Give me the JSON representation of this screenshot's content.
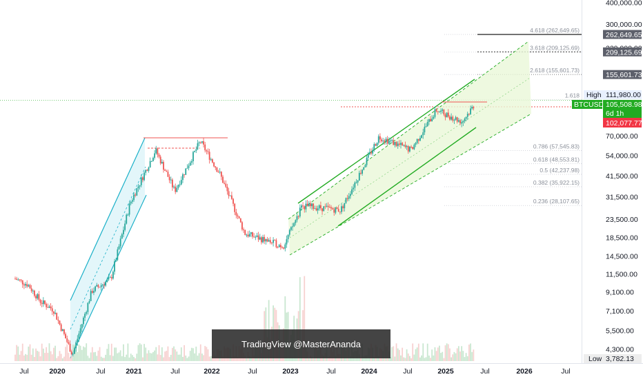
{
  "chart_data": {
    "type": "candlestick",
    "symbol": "BTCUSDT",
    "scale": "log",
    "x_ticks": [
      "Jul",
      "2020",
      "Jul",
      "2021",
      "Jul",
      "2022",
      "Jul",
      "2023",
      "Jul",
      "2024",
      "Jul",
      "2025",
      "Jul",
      "2026",
      "Jul"
    ],
    "y_ticks": [
      "400,000.00",
      "300,000.00",
      "220,000.00",
      "70,000.00",
      "54,000.00",
      "41,500.00",
      "31,500.00",
      "23,500.00",
      "18,500.00",
      "14,500.00",
      "11,500.00",
      "9,100.00",
      "7,100.00",
      "5,500.00",
      "4,300.00"
    ],
    "y_tick_values": [
      400000,
      300000,
      220000,
      70000,
      54000,
      41500,
      31500,
      23500,
      18500,
      14500,
      11500,
      9100,
      7100,
      5500,
      4300
    ],
    "price_labels": [
      {
        "text": "262,649.65",
        "value": 262649.65,
        "color": "#5d606b"
      },
      {
        "text": "209,125.69",
        "value": 209125.69,
        "color": "#5d606b"
      },
      {
        "text": "155,601.73",
        "value": 155601.73,
        "color": "#5d606b"
      },
      {
        "text": "111,980.00",
        "value": 111980,
        "color": "#e8f0fe",
        "prefix": "High"
      },
      {
        "text": "105,508.98",
        "value": 105508.98,
        "color": "#22ab22",
        "prefix": "BTCUSDT"
      },
      {
        "text": "6d 1h",
        "color": "#22ab22"
      },
      {
        "text": "102,077.77",
        "value": 102077.77,
        "color": "#f23645"
      },
      {
        "text": "3,782.13",
        "value": 3782.13,
        "color": "#ededed",
        "prefix": "Low"
      }
    ],
    "fib_levels": [
      {
        "label": "4.618 (262,649.65)",
        "value": 262649.65
      },
      {
        "label": "3.618 (209,125.69)",
        "value": 209125.69
      },
      {
        "label": "2.618 (155,601.73)",
        "value": 155601.73
      },
      {
        "label": "1.618",
        "value": 111980
      },
      {
        "label": "0.786 (57,545.83)",
        "value": 57545.83
      },
      {
        "label": "0.618 (48,553.81)",
        "value": 48553.81
      },
      {
        "label": "0.5 (42,237.98)",
        "value": 42237.98
      },
      {
        "label": "0.382 (35,922.15)",
        "value": 35922.15
      },
      {
        "label": "0.236 (28,107.65)",
        "value": 28107.65
      }
    ],
    "series_close_approx": [
      {
        "date": "2019-06",
        "close": 10800
      },
      {
        "date": "2019-08",
        "close": 10000
      },
      {
        "date": "2019-10",
        "close": 8000
      },
      {
        "date": "2019-12",
        "close": 7200
      },
      {
        "date": "2020-03",
        "close": 4000
      },
      {
        "date": "2020-06",
        "close": 9200
      },
      {
        "date": "2020-09",
        "close": 10800
      },
      {
        "date": "2020-12",
        "close": 29000
      },
      {
        "date": "2021-04",
        "close": 58000
      },
      {
        "date": "2021-07",
        "close": 34000
      },
      {
        "date": "2021-11",
        "close": 65000
      },
      {
        "date": "2022-02",
        "close": 43000
      },
      {
        "date": "2022-06",
        "close": 19500
      },
      {
        "date": "2022-12",
        "close": 16500
      },
      {
        "date": "2023-03",
        "close": 28000
      },
      {
        "date": "2023-09",
        "close": 26500
      },
      {
        "date": "2024-03",
        "close": 69000
      },
      {
        "date": "2024-08",
        "close": 58000
      },
      {
        "date": "2024-12",
        "close": 98000
      },
      {
        "date": "2025-04",
        "close": 84000
      },
      {
        "date": "2025-06",
        "close": 105508.98
      }
    ],
    "high": 111980,
    "low": 3782.13,
    "last": 105508.98
  },
  "watermark": "TradingView @MasterAnanda",
  "colors": {
    "up": "#26a69a",
    "down": "#ef5350",
    "channel_green": "#22ab22",
    "channel_cyan": "#1ab0c8"
  }
}
